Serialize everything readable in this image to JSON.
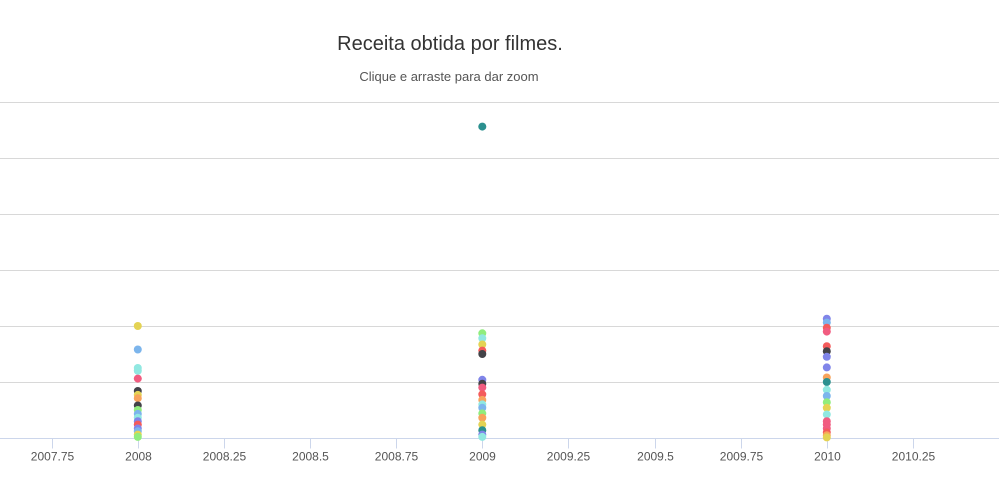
{
  "chart_data": {
    "type": "scatter",
    "title": "Receita obtida por filmes.",
    "subtitle": "Clique e arraste para dar zoom",
    "xlabel": "",
    "ylabel": "",
    "xlim": [
      2007.6,
      2010.5
    ],
    "ylim": [
      0,
      600
    ],
    "x_ticks": [
      2007.75,
      2008,
      2008.25,
      2008.5,
      2008.75,
      2009,
      2009.25,
      2009.5,
      2009.75,
      2010,
      2010.25
    ],
    "x_tick_labels": [
      "2007.75",
      "2008",
      "2008.25",
      "2008.5",
      "2008.75",
      "2009",
      "2009.25",
      "2009.5",
      "2009.75",
      "2010",
      "2010.25"
    ],
    "y_gridlines": [
      0,
      100,
      200,
      300,
      400,
      500,
      600
    ],
    "grid": true,
    "legend": "none",
    "colors": [
      "#7cb5ec",
      "#434348",
      "#90ed7d",
      "#f7a35c",
      "#8085e9",
      "#f15c80",
      "#e4d354",
      "#2b908f",
      "#f45b5b",
      "#91e8e1"
    ],
    "points": [
      {
        "x": 2008,
        "y": 200,
        "color": "#e4d354"
      },
      {
        "x": 2008,
        "y": 158,
        "color": "#7cb5ec"
      },
      {
        "x": 2008,
        "y": 125,
        "color": "#91e8e1"
      },
      {
        "x": 2008,
        "y": 120,
        "color": "#91e8e1"
      },
      {
        "x": 2008,
        "y": 106,
        "color": "#f15c80"
      },
      {
        "x": 2008,
        "y": 84,
        "color": "#434348"
      },
      {
        "x": 2008,
        "y": 77,
        "color": "#e4d354"
      },
      {
        "x": 2008,
        "y": 71,
        "color": "#f7a35c"
      },
      {
        "x": 2008,
        "y": 58,
        "color": "#434348"
      },
      {
        "x": 2008,
        "y": 50,
        "color": "#90ed7d"
      },
      {
        "x": 2008,
        "y": 43,
        "color": "#7cb5ec"
      },
      {
        "x": 2008,
        "y": 36,
        "color": "#91e8e1"
      },
      {
        "x": 2008,
        "y": 30,
        "color": "#8085e9"
      },
      {
        "x": 2008,
        "y": 24,
        "color": "#f45b5b"
      },
      {
        "x": 2008,
        "y": 17,
        "color": "#8085e9"
      },
      {
        "x": 2008,
        "y": 12,
        "color": "#7cb5ec"
      },
      {
        "x": 2008,
        "y": 6,
        "color": "#e4d354"
      },
      {
        "x": 2008,
        "y": 2,
        "color": "#90ed7d"
      },
      {
        "x": 2009,
        "y": 556,
        "color": "#2b908f"
      },
      {
        "x": 2009,
        "y": 187,
        "color": "#90ed7d"
      },
      {
        "x": 2009,
        "y": 178,
        "color": "#91e8e1"
      },
      {
        "x": 2009,
        "y": 167,
        "color": "#e4d354"
      },
      {
        "x": 2009,
        "y": 156,
        "color": "#f45b5b"
      },
      {
        "x": 2009,
        "y": 150,
        "color": "#434348"
      },
      {
        "x": 2009,
        "y": 104,
        "color": "#8085e9"
      },
      {
        "x": 2009,
        "y": 97,
        "color": "#434348"
      },
      {
        "x": 2009,
        "y": 90,
        "color": "#f15c80"
      },
      {
        "x": 2009,
        "y": 78,
        "color": "#f45b5b"
      },
      {
        "x": 2009,
        "y": 68,
        "color": "#f7a35c"
      },
      {
        "x": 2009,
        "y": 60,
        "color": "#91e8e1"
      },
      {
        "x": 2009,
        "y": 54,
        "color": "#7cb5ec"
      },
      {
        "x": 2009,
        "y": 44,
        "color": "#90ed7d"
      },
      {
        "x": 2009,
        "y": 36,
        "color": "#f7a35c"
      },
      {
        "x": 2009,
        "y": 24,
        "color": "#e4d354"
      },
      {
        "x": 2009,
        "y": 14,
        "color": "#2b908f"
      },
      {
        "x": 2009,
        "y": 6,
        "color": "#8085e9"
      },
      {
        "x": 2009,
        "y": 2,
        "color": "#91e8e1"
      },
      {
        "x": 2010,
        "y": 213,
        "color": "#8085e9"
      },
      {
        "x": 2010,
        "y": 206,
        "color": "#7cb5ec"
      },
      {
        "x": 2010,
        "y": 197,
        "color": "#f45b5b"
      },
      {
        "x": 2010,
        "y": 190,
        "color": "#f15c80"
      },
      {
        "x": 2010,
        "y": 164,
        "color": "#f45b5b"
      },
      {
        "x": 2010,
        "y": 155,
        "color": "#434348"
      },
      {
        "x": 2010,
        "y": 145,
        "color": "#8085e9"
      },
      {
        "x": 2010,
        "y": 126,
        "color": "#8085e9"
      },
      {
        "x": 2010,
        "y": 108,
        "color": "#f7a35c"
      },
      {
        "x": 2010,
        "y": 100,
        "color": "#2b908f"
      },
      {
        "x": 2010,
        "y": 86,
        "color": "#91e8e1"
      },
      {
        "x": 2010,
        "y": 75,
        "color": "#7cb5ec"
      },
      {
        "x": 2010,
        "y": 64,
        "color": "#90ed7d"
      },
      {
        "x": 2010,
        "y": 54,
        "color": "#e4d354"
      },
      {
        "x": 2010,
        "y": 42,
        "color": "#91e8e1"
      },
      {
        "x": 2010,
        "y": 30,
        "color": "#f15c80"
      },
      {
        "x": 2010,
        "y": 24,
        "color": "#f15c80"
      },
      {
        "x": 2010,
        "y": 17,
        "color": "#f15c80"
      },
      {
        "x": 2010,
        "y": 10,
        "color": "#f45b5b"
      },
      {
        "x": 2010,
        "y": 5,
        "color": "#f7a35c"
      },
      {
        "x": 2010,
        "y": 1,
        "color": "#e4d354"
      }
    ]
  }
}
